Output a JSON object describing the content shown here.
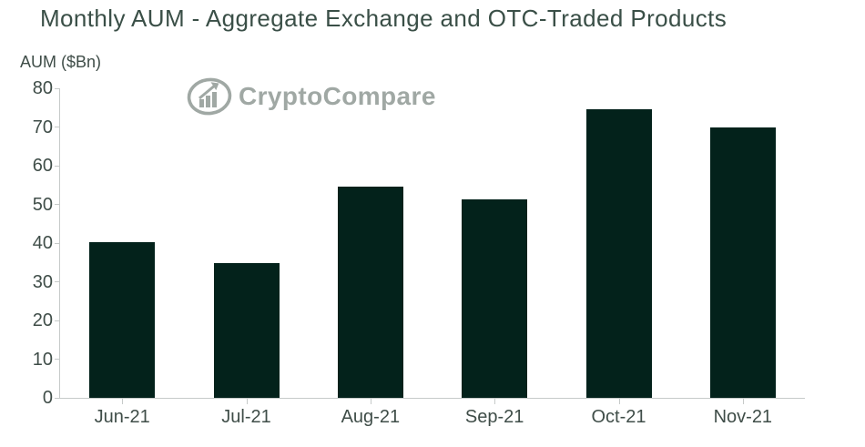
{
  "watermark": {
    "text": "CryptoCompare",
    "icon": "cryptocompare-growth-chart-logo"
  },
  "colors": {
    "bar": "#03221b",
    "title_text": "#3a4f47",
    "tick_text": "#3f4d48",
    "axis_line": "#c6cac9",
    "watermark": "#9ba4a0",
    "background": "#ffffff"
  },
  "chart_data": {
    "type": "bar",
    "title": "Monthly AUM - Aggregate Exchange and OTC-Traded Products",
    "ylabel": "AUM ($Bn)",
    "xlabel": "",
    "categories": [
      "Jun-21",
      "Jul-21",
      "Aug-21",
      "Sep-21",
      "Oct-21",
      "Nov-21"
    ],
    "values": [
      40.3,
      34.8,
      54.5,
      51.3,
      74.5,
      70.0
    ],
    "ylim": [
      0,
      80
    ],
    "yticks": [
      0,
      10,
      20,
      30,
      40,
      50,
      60,
      70,
      80
    ],
    "grid": false,
    "legend_position": "none",
    "bar_color": "#03221b"
  }
}
